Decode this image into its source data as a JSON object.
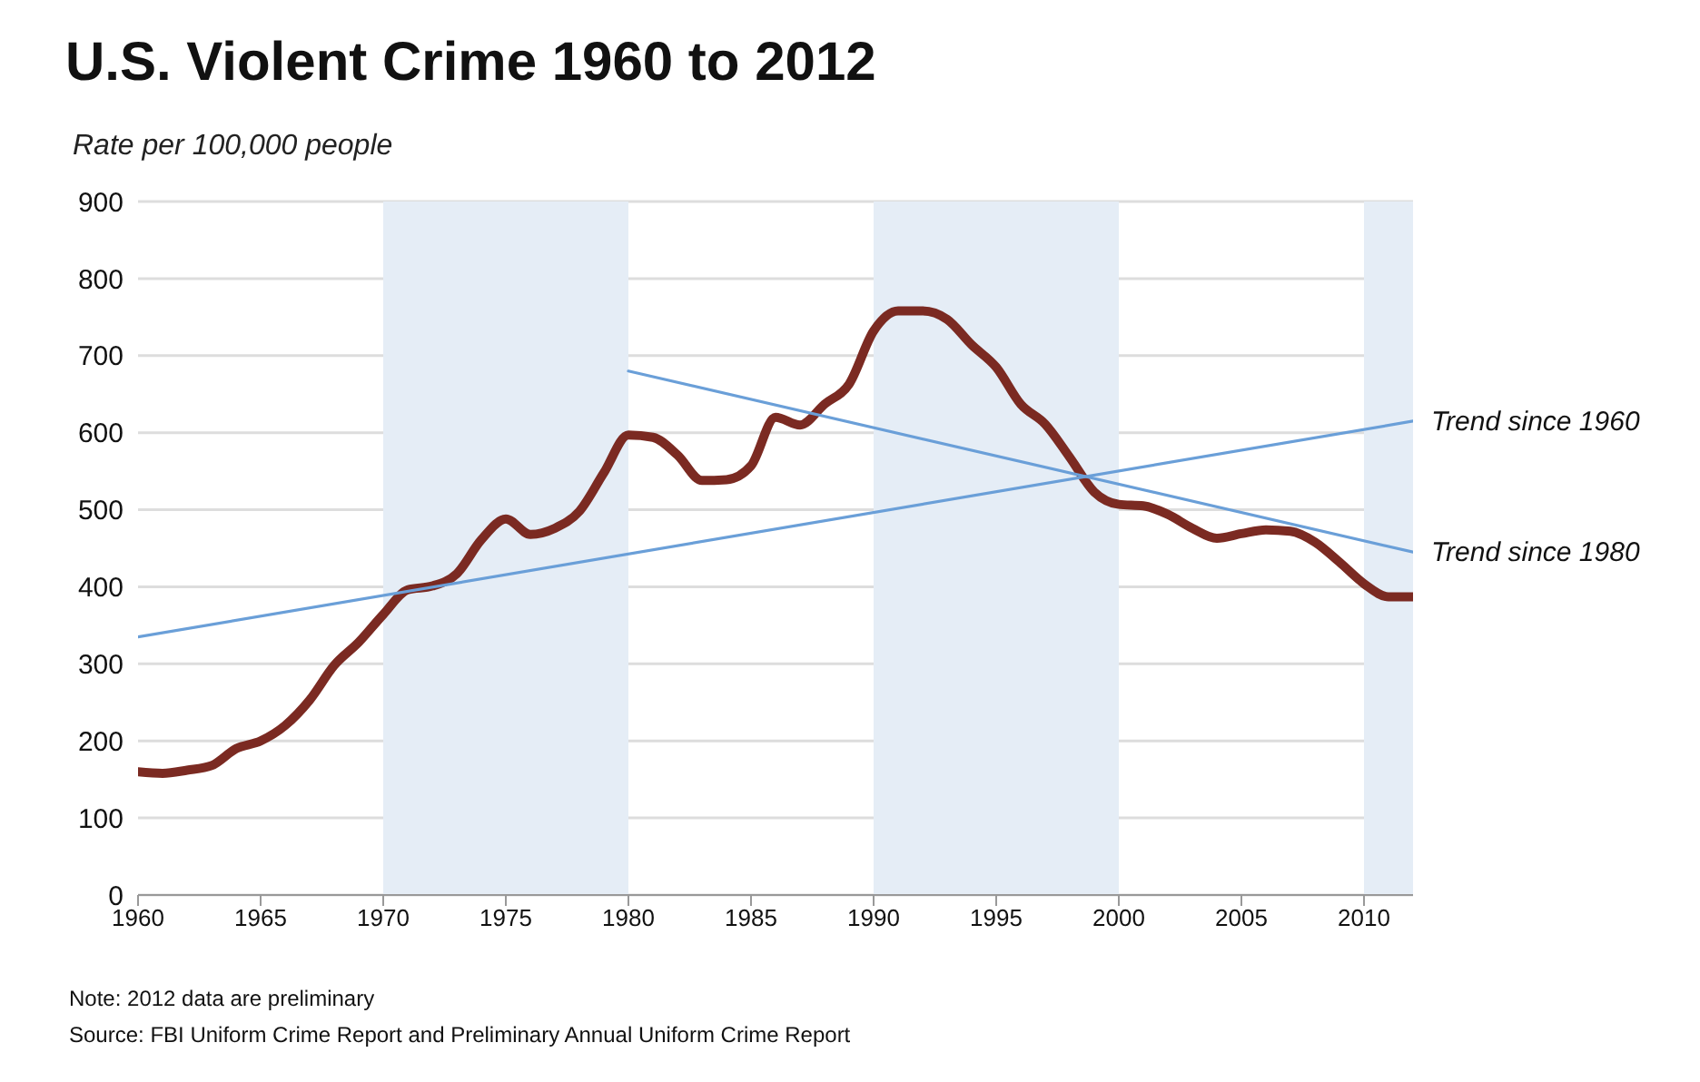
{
  "chart_data": {
    "type": "line",
    "title": "U.S. Violent Crime 1960 to 2012",
    "subtitle": "Rate per 100,000 people",
    "x": [
      1960,
      1961,
      1962,
      1963,
      1964,
      1965,
      1966,
      1967,
      1968,
      1969,
      1970,
      1971,
      1972,
      1973,
      1974,
      1975,
      1976,
      1977,
      1978,
      1979,
      1980,
      1981,
      1982,
      1983,
      1984,
      1985,
      1986,
      1987,
      1988,
      1989,
      1990,
      1991,
      1992,
      1993,
      1994,
      1995,
      1996,
      1997,
      1998,
      1999,
      2000,
      2001,
      2002,
      2003,
      2004,
      2005,
      2006,
      2007,
      2008,
      2009,
      2010,
      2011,
      2012
    ],
    "series": [
      {
        "color": "#7b2a22",
        "values": [
          160,
          158,
          162,
          168,
          190,
          200,
          220,
          253,
          298,
          328,
          364,
          396,
          401,
          417,
          461,
          488,
          468,
          476,
          498,
          548,
          597,
          594,
          571,
          538,
          539,
          557,
          620,
          610,
          637,
          663,
          732,
          758,
          758,
          747,
          714,
          685,
          637,
          611,
          568,
          523,
          507,
          505,
          494,
          476,
          463,
          469,
          474,
          472,
          458,
          432,
          404,
          387,
          387
        ]
      },
      {
        "type": "line",
        "name": "Trend since 1960",
        "color": "#6a9fd8",
        "x": [
          1960,
          2012
        ],
        "values": [
          335,
          615
        ]
      },
      {
        "type": "line",
        "name": "Trend since 1980",
        "color": "#6a9fd8",
        "x": [
          1980,
          2012
        ],
        "values": [
          680,
          445
        ]
      }
    ],
    "bands": [
      {
        "axis": "x",
        "from": 1970,
        "to": 1980,
        "color": "#e5edf6"
      },
      {
        "axis": "x",
        "from": 1990,
        "to": 2000,
        "color": "#e5edf6"
      },
      {
        "axis": "x",
        "from": 2010,
        "to": 2012,
        "color": "#e5edf6"
      }
    ],
    "xlim": [
      1960,
      2012
    ],
    "xticks": [
      1960,
      1965,
      1970,
      1975,
      1980,
      1985,
      1990,
      1995,
      2000,
      2005,
      2010
    ],
    "ylim": [
      0,
      900
    ],
    "yticks": [
      0,
      100,
      200,
      300,
      400,
      500,
      600,
      700,
      800,
      900
    ],
    "grid": "y",
    "legend": false,
    "marker": "none",
    "line_style": "solid",
    "annotations": [
      "Note: 2012 data are preliminary",
      "Source: FBI Uniform Crime Report and Preliminary Annual Uniform Crime Report"
    ]
  }
}
